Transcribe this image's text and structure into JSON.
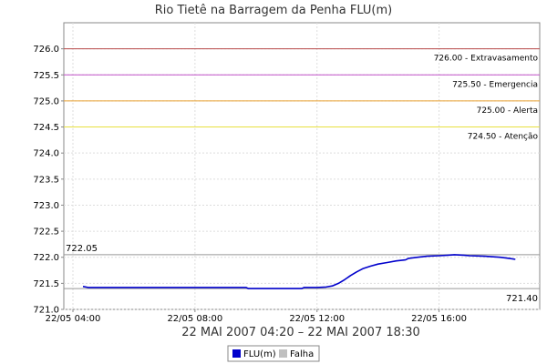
{
  "chart_data": {
    "type": "line",
    "title": "Rio Tietê na Barragem da Penha FLU(m)",
    "date_range": "22 MAI 2007 04:20 – 22 MAI 2007 18:30",
    "xlim": [
      4.0,
      19.0
    ],
    "ylim": [
      721.0,
      726.5
    ],
    "y_ticks": [
      721.0,
      721.5,
      722.0,
      722.5,
      723.0,
      723.5,
      724.0,
      724.5,
      725.0,
      725.5,
      726.0
    ],
    "y_tick_labels": [
      "721.0",
      "721.5",
      "722.0",
      "722.5",
      "723.0",
      "723.5",
      "724.0",
      "724.5",
      "725.0",
      "725.5",
      "726.0"
    ],
    "x_ticks": [
      4,
      8,
      12,
      16
    ],
    "x_tick_labels": [
      "22/05 04:00",
      "22/05 08:00",
      "22/05 12:00",
      "22/05 16:00"
    ],
    "grid": true,
    "legend_placement": "bottom-center",
    "thresholds": [
      {
        "value": 726.0,
        "label": "726.00 - Extravasamento",
        "color": "#b84a4a"
      },
      {
        "value": 725.5,
        "label": "725.50 - Emergencia",
        "color": "#c050c8"
      },
      {
        "value": 725.0,
        "label": "725.00 - Alerta",
        "color": "#e8a030"
      },
      {
        "value": 724.5,
        "label": "724.50 - Atenção",
        "color": "#e8e040"
      }
    ],
    "markers": [
      {
        "value": 722.05,
        "label": "722.05",
        "position": "top-left"
      },
      {
        "value": 721.4,
        "label": "721.40",
        "position": "bottom-right"
      }
    ],
    "series": [
      {
        "name": "FLU(m)",
        "color": "#0000cc",
        "x": [
          4.33,
          4.5,
          5.0,
          6.0,
          7.0,
          8.0,
          9.0,
          9.67,
          9.75,
          10.5,
          11.0,
          11.5,
          11.58,
          12.0,
          12.3,
          12.5,
          12.7,
          12.9,
          13.1,
          13.3,
          13.5,
          13.75,
          14.0,
          14.3,
          14.6,
          14.9,
          15.0,
          15.3,
          15.6,
          16.0,
          16.3,
          16.5,
          16.8,
          17.0,
          17.5,
          18.0,
          18.3,
          18.5
        ],
        "y": [
          721.44,
          721.42,
          721.42,
          721.42,
          721.42,
          721.42,
          721.42,
          721.42,
          721.4,
          721.4,
          721.4,
          721.4,
          721.42,
          721.42,
          721.43,
          721.45,
          721.5,
          721.57,
          721.65,
          721.72,
          721.78,
          721.83,
          721.87,
          721.9,
          721.93,
          721.95,
          721.98,
          722.0,
          722.02,
          722.03,
          722.04,
          722.05,
          722.04,
          722.03,
          722.02,
          722.0,
          721.98,
          721.96
        ]
      },
      {
        "name": "Falha",
        "color": "#c0c0c0",
        "x": [],
        "y": []
      }
    ]
  }
}
